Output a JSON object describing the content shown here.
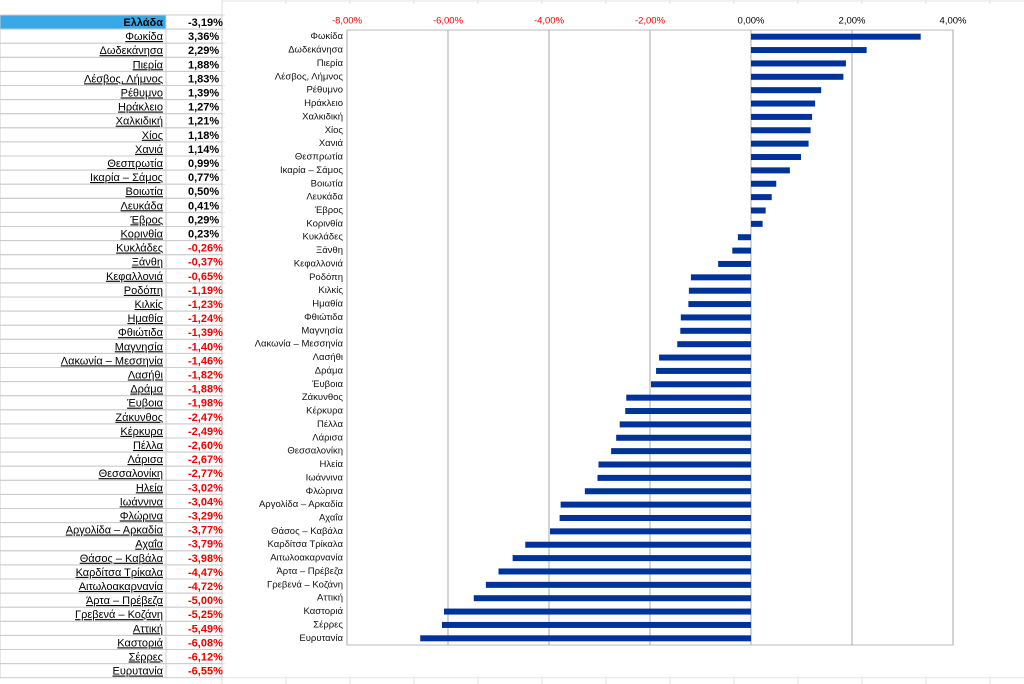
{
  "table": {
    "rows": [
      [
        "Ελλάδα",
        "-3,19%"
      ],
      [
        "Φωκίδα",
        "3,36%"
      ],
      [
        "Δωδεκάνησα",
        "2,29%"
      ],
      [
        "Πιερία",
        "1,88%"
      ],
      [
        "Λέσβος, Λήμνος",
        "1,83%"
      ],
      [
        "Ρέθυμνο",
        "1,39%"
      ],
      [
        "Ηράκλειο",
        "1,27%"
      ],
      [
        "Χαλκιδική",
        "1,21%"
      ],
      [
        "Χίος",
        "1,18%"
      ],
      [
        "Χανιά",
        "1,14%"
      ],
      [
        "Θεσπρωτία",
        "0,99%"
      ],
      [
        "Ικαρία – Σάμος",
        "0,77%"
      ],
      [
        "Βοιωτία",
        "0,50%"
      ],
      [
        "Λευκάδα",
        "0,41%"
      ],
      [
        "Έβρος",
        "0,29%"
      ],
      [
        "Κορινθία",
        "0,23%"
      ],
      [
        "Κυκλάδες",
        "-0,26%"
      ],
      [
        "Ξάνθη",
        "-0,37%"
      ],
      [
        "Κεφαλλονιά",
        "-0,65%"
      ],
      [
        "Ροδόπη",
        "-1,19%"
      ],
      [
        "Κιλκίς",
        "-1,23%"
      ],
      [
        "Ημαθία",
        "-1,24%"
      ],
      [
        "Φθιώτιδα",
        "-1,39%"
      ],
      [
        "Μαγνησία",
        "-1,40%"
      ],
      [
        "Λακωνία – Μεσσηνία",
        "-1,46%"
      ],
      [
        "Λασήθι",
        "-1,82%"
      ],
      [
        "Δράμα",
        "-1,88%"
      ],
      [
        "Έυβοια",
        "-1,98%"
      ],
      [
        "Ζάκυνθος",
        "-2,47%"
      ],
      [
        "Κέρκυρα",
        "-2,49%"
      ],
      [
        "Πέλλα",
        "-2,60%"
      ],
      [
        "Λάρισα",
        "-2,67%"
      ],
      [
        "Θεσσαλονίκη",
        "-2,77%"
      ],
      [
        "Ηλεία",
        "-3,02%"
      ],
      [
        "Ιωάννινα",
        "-3,04%"
      ],
      [
        "Φλώρινα",
        "-3,29%"
      ],
      [
        "Αργολίδα – Αρκαδία",
        "-3,77%"
      ],
      [
        "Αχαΐα",
        "-3,79%"
      ],
      [
        "Θάσος – Καβάλα",
        "-3,98%"
      ],
      [
        "Καρδίτσα Τρίκαλα",
        "-4,47%"
      ],
      [
        "Αιτωλοακαρνανία",
        "-4,72%"
      ],
      [
        "Άρτα – Πρέβεζα",
        "-5,00%"
      ],
      [
        "Γρεβενά – Κοζάνη",
        "-5,25%"
      ],
      [
        "Αττική",
        "-5,49%"
      ],
      [
        "Καστοριά",
        "-6,08%"
      ],
      [
        "Σέρρες",
        "-6,12%"
      ],
      [
        "Ευρυτανία",
        "-6,55%"
      ]
    ]
  },
  "chart_data": {
    "type": "bar",
    "orientation": "horizontal",
    "color": "#003399",
    "grid": true,
    "categories": [
      "Φωκίδα",
      "Δωδεκάνησα",
      "Πιερία",
      "Λέσβος, Λήμνος",
      "Ρέθυμνο",
      "Ηράκλειο",
      "Χαλκιδική",
      "Χίος",
      "Χανιά",
      "Θεσπρωτία",
      "Ικαρία – Σάμος",
      "Βοιωτία",
      "Λευκάδα",
      "Έβρος",
      "Κορινθία",
      "Κυκλάδες",
      "Ξάνθη",
      "Κεφαλλονιά",
      "Ροδόπη",
      "Κιλκίς",
      "Ημαθία",
      "Φθιώτιδα",
      "Μαγνησία",
      "Λακωνία – Μεσσηνία",
      "Λασήθι",
      "Δράμα",
      "Έυβοια",
      "Ζάκυνθος",
      "Κέρκυρα",
      "Πέλλα",
      "Λάρισα",
      "Θεσσαλονίκη",
      "Ηλεία",
      "Ιωάννινα",
      "Φλώρινα",
      "Αργολίδα – Αρκαδία",
      "Αχαΐα",
      "Θάσος – Καβάλα",
      "Καρδίτσα Τρίκαλα",
      "Αιτωλοακαρνανία",
      "Άρτα – Πρέβεζα",
      "Γρεβενά – Κοζάνη",
      "Αττική",
      "Καστοριά",
      "Σέρρες",
      "Ευρυτανία"
    ],
    "values": [
      3.36,
      2.29,
      1.88,
      1.83,
      1.39,
      1.27,
      1.21,
      1.18,
      1.14,
      0.99,
      0.77,
      0.5,
      0.41,
      0.29,
      0.23,
      -0.26,
      -0.37,
      -0.65,
      -1.19,
      -1.23,
      -1.24,
      -1.39,
      -1.4,
      -1.46,
      -1.82,
      -1.88,
      -1.98,
      -2.47,
      -2.49,
      -2.6,
      -2.67,
      -2.77,
      -3.02,
      -3.04,
      -3.29,
      -3.77,
      -3.79,
      -3.98,
      -4.47,
      -4.72,
      -5.0,
      -5.25,
      -5.49,
      -6.08,
      -6.12,
      -6.55
    ],
    "xlim": [
      -8,
      4
    ],
    "xticks": [
      {
        "value": -8,
        "label": "-8,00%"
      },
      {
        "value": -6,
        "label": "-6,00%"
      },
      {
        "value": -4,
        "label": "-4,00%"
      },
      {
        "value": -2,
        "label": "-2,00%"
      },
      {
        "value": 0,
        "label": "0,00%"
      },
      {
        "value": 2,
        "label": "2,00%"
      },
      {
        "value": 4,
        "label": "4,00%"
      }
    ]
  }
}
